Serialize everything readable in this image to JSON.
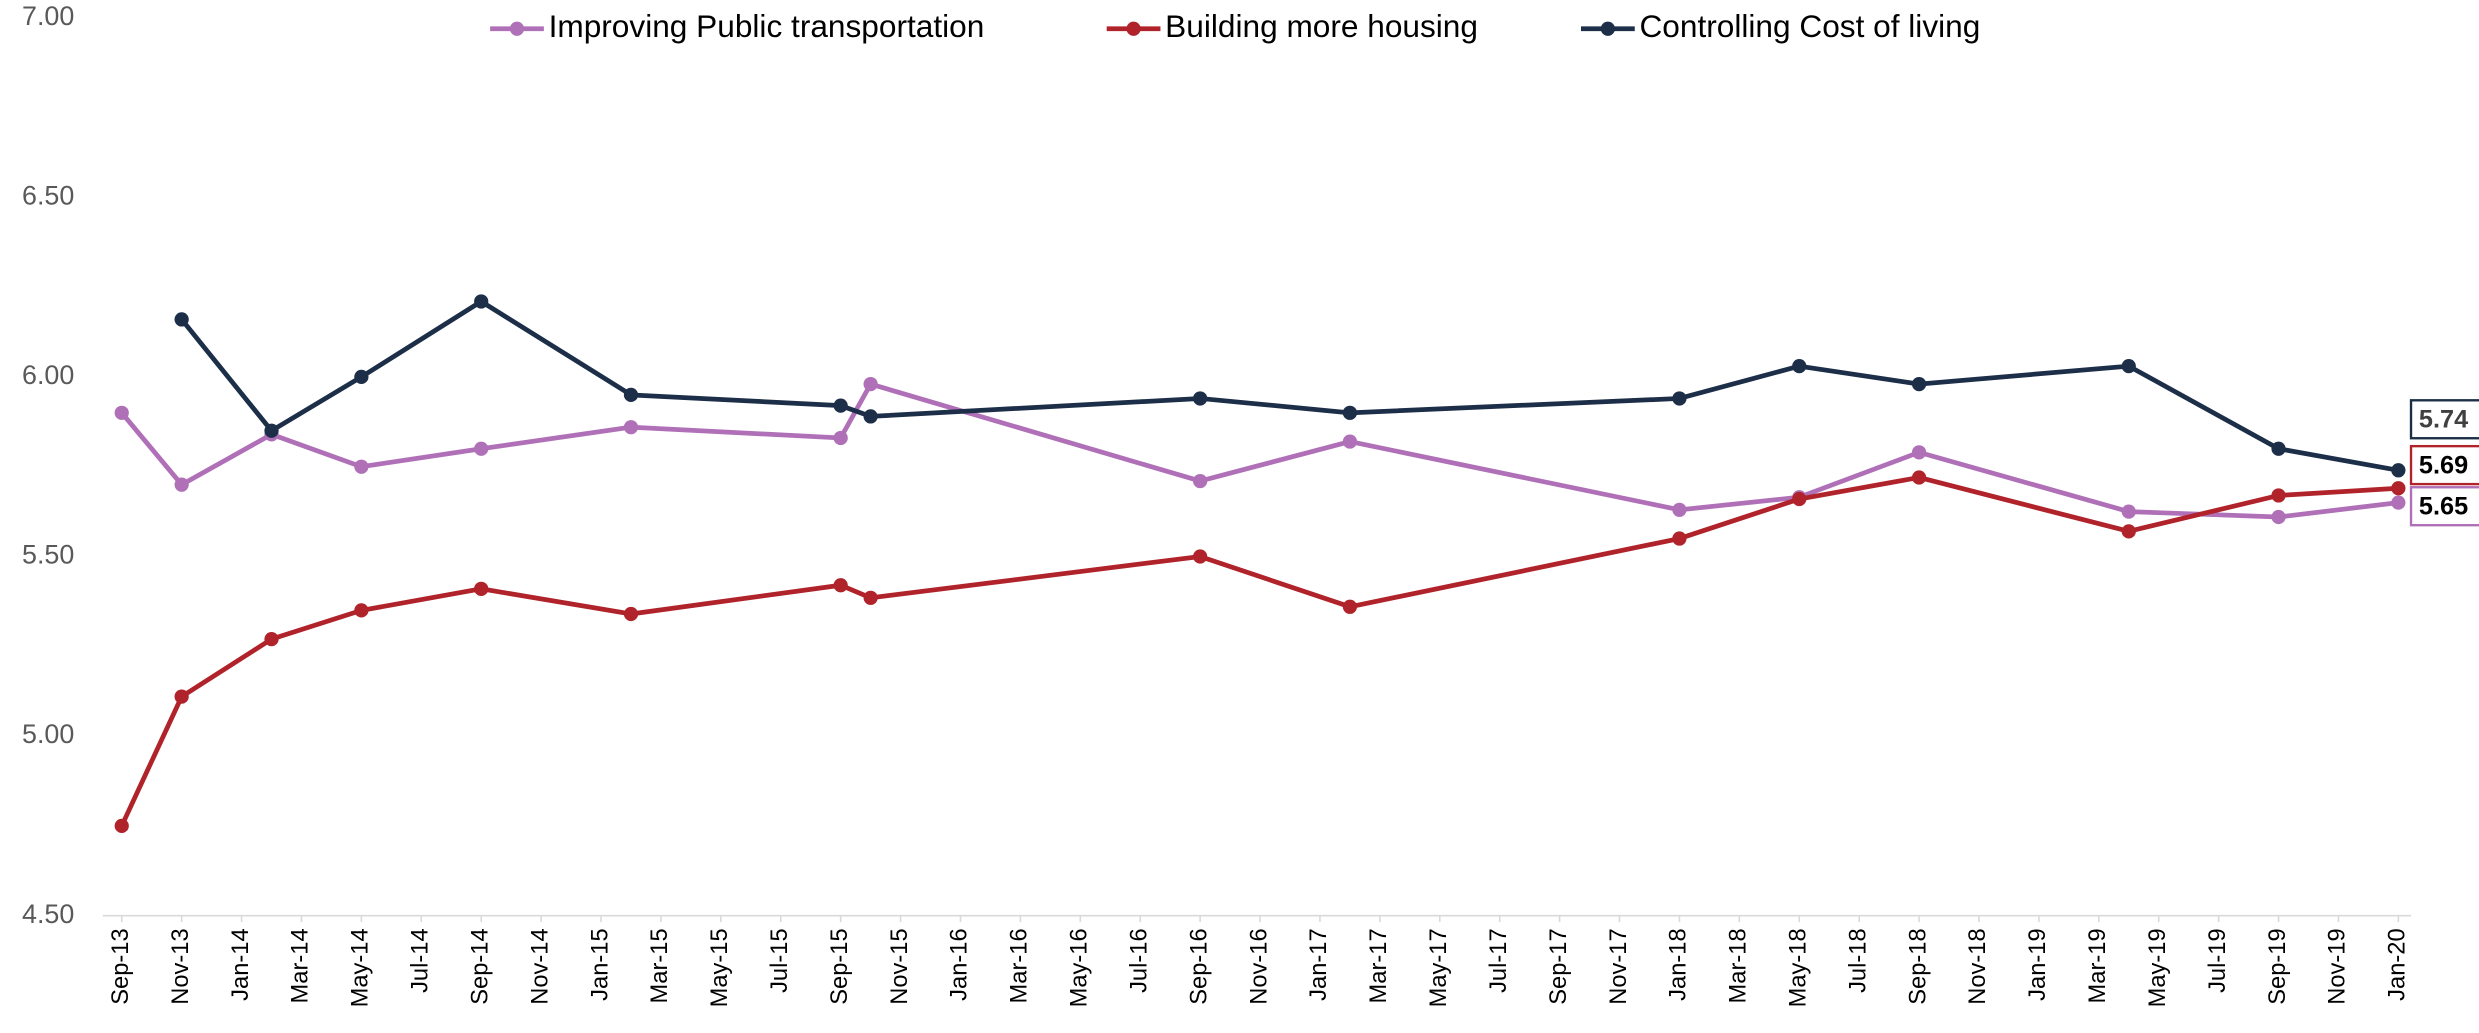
{
  "chart_data": {
    "type": "line",
    "x": [
      "2013-09",
      "2013-11",
      "2014-02",
      "2014-05",
      "2014-09",
      "2015-02",
      "2015-09",
      "2015-10",
      "2016-09",
      "2017-02",
      "2018-01",
      "2018-05",
      "2018-09",
      "2019-04",
      "2019-09",
      "2020-01"
    ],
    "series": [
      {
        "name": "Improving Public transportation",
        "color": "#b070b8",
        "values": [
          5.9,
          5.7,
          5.84,
          5.75,
          5.8,
          5.86,
          5.83,
          5.98,
          5.71,
          5.82,
          5.63,
          5.665,
          5.79,
          5.625,
          5.61,
          5.65
        ]
      },
      {
        "name": "Building more housing",
        "color": "#b0232a",
        "values": [
          4.75,
          5.11,
          5.27,
          5.35,
          5.41,
          5.34,
          5.42,
          5.385,
          5.5,
          5.36,
          5.55,
          5.66,
          5.72,
          5.57,
          5.67,
          5.69
        ]
      },
      {
        "name": "Controlling Cost of living",
        "color": "#1c2e48",
        "values": [
          null,
          6.16,
          5.85,
          6.0,
          6.21,
          5.95,
          5.92,
          5.89,
          5.94,
          5.9,
          5.94,
          6.03,
          5.98,
          6.03,
          5.8,
          5.74
        ]
      }
    ],
    "xlim": [
      "2013-09",
      "2020-01"
    ],
    "xticks": [
      {
        "value": "2013-09",
        "label": "Sep-13"
      },
      {
        "value": "2013-11",
        "label": "Nov-13"
      },
      {
        "value": "2014-01",
        "label": "Jan-14"
      },
      {
        "value": "2014-03",
        "label": "Mar-14"
      },
      {
        "value": "2014-05",
        "label": "May-14"
      },
      {
        "value": "2014-07",
        "label": "Jul-14"
      },
      {
        "value": "2014-09",
        "label": "Sep-14"
      },
      {
        "value": "2014-11",
        "label": "Nov-14"
      },
      {
        "value": "2015-01",
        "label": "Jan-15"
      },
      {
        "value": "2015-03",
        "label": "Mar-15"
      },
      {
        "value": "2015-05",
        "label": "May-15"
      },
      {
        "value": "2015-07",
        "label": "Jul-15"
      },
      {
        "value": "2015-09",
        "label": "Sep-15"
      },
      {
        "value": "2015-11",
        "label": "Nov-15"
      },
      {
        "value": "2016-01",
        "label": "Jan-16"
      },
      {
        "value": "2016-03",
        "label": "Mar-16"
      },
      {
        "value": "2016-05",
        "label": "May-16"
      },
      {
        "value": "2016-07",
        "label": "Jul-16"
      },
      {
        "value": "2016-09",
        "label": "Sep-16"
      },
      {
        "value": "2016-11",
        "label": "Nov-16"
      },
      {
        "value": "2017-01",
        "label": "Jan-17"
      },
      {
        "value": "2017-03",
        "label": "Mar-17"
      },
      {
        "value": "2017-05",
        "label": "May-17"
      },
      {
        "value": "2017-07",
        "label": "Jul-17"
      },
      {
        "value": "2017-09",
        "label": "Sep-17"
      },
      {
        "value": "2017-11",
        "label": "Nov-17"
      },
      {
        "value": "2018-01",
        "label": "Jan-18"
      },
      {
        "value": "2018-03",
        "label": "Mar-18"
      },
      {
        "value": "2018-05",
        "label": "May-18"
      },
      {
        "value": "2018-07",
        "label": "Jul-18"
      },
      {
        "value": "2018-09",
        "label": "Sep-18"
      },
      {
        "value": "2018-11",
        "label": "Nov-18"
      },
      {
        "value": "2019-01",
        "label": "Jan-19"
      },
      {
        "value": "2019-03",
        "label": "Mar-19"
      },
      {
        "value": "2019-05",
        "label": "May-19"
      },
      {
        "value": "2019-07",
        "label": "Jul-19"
      },
      {
        "value": "2019-09",
        "label": "Sep-19"
      },
      {
        "value": "2019-11",
        "label": "Nov-19"
      },
      {
        "value": "2020-01",
        "label": "Jan-20"
      }
    ],
    "ylim": [
      4.5,
      7.0
    ],
    "yticks": [
      {
        "value": 4.5,
        "label": "4.50"
      },
      {
        "value": 5,
        "label": "5.00"
      },
      {
        "value": 5.5,
        "label": "5.50"
      },
      {
        "value": 6,
        "label": "6.00"
      },
      {
        "value": 6.5,
        "label": "6.50"
      },
      {
        "value": 7,
        "label": "7.00"
      }
    ],
    "grid": false,
    "legend": "top"
  }
}
